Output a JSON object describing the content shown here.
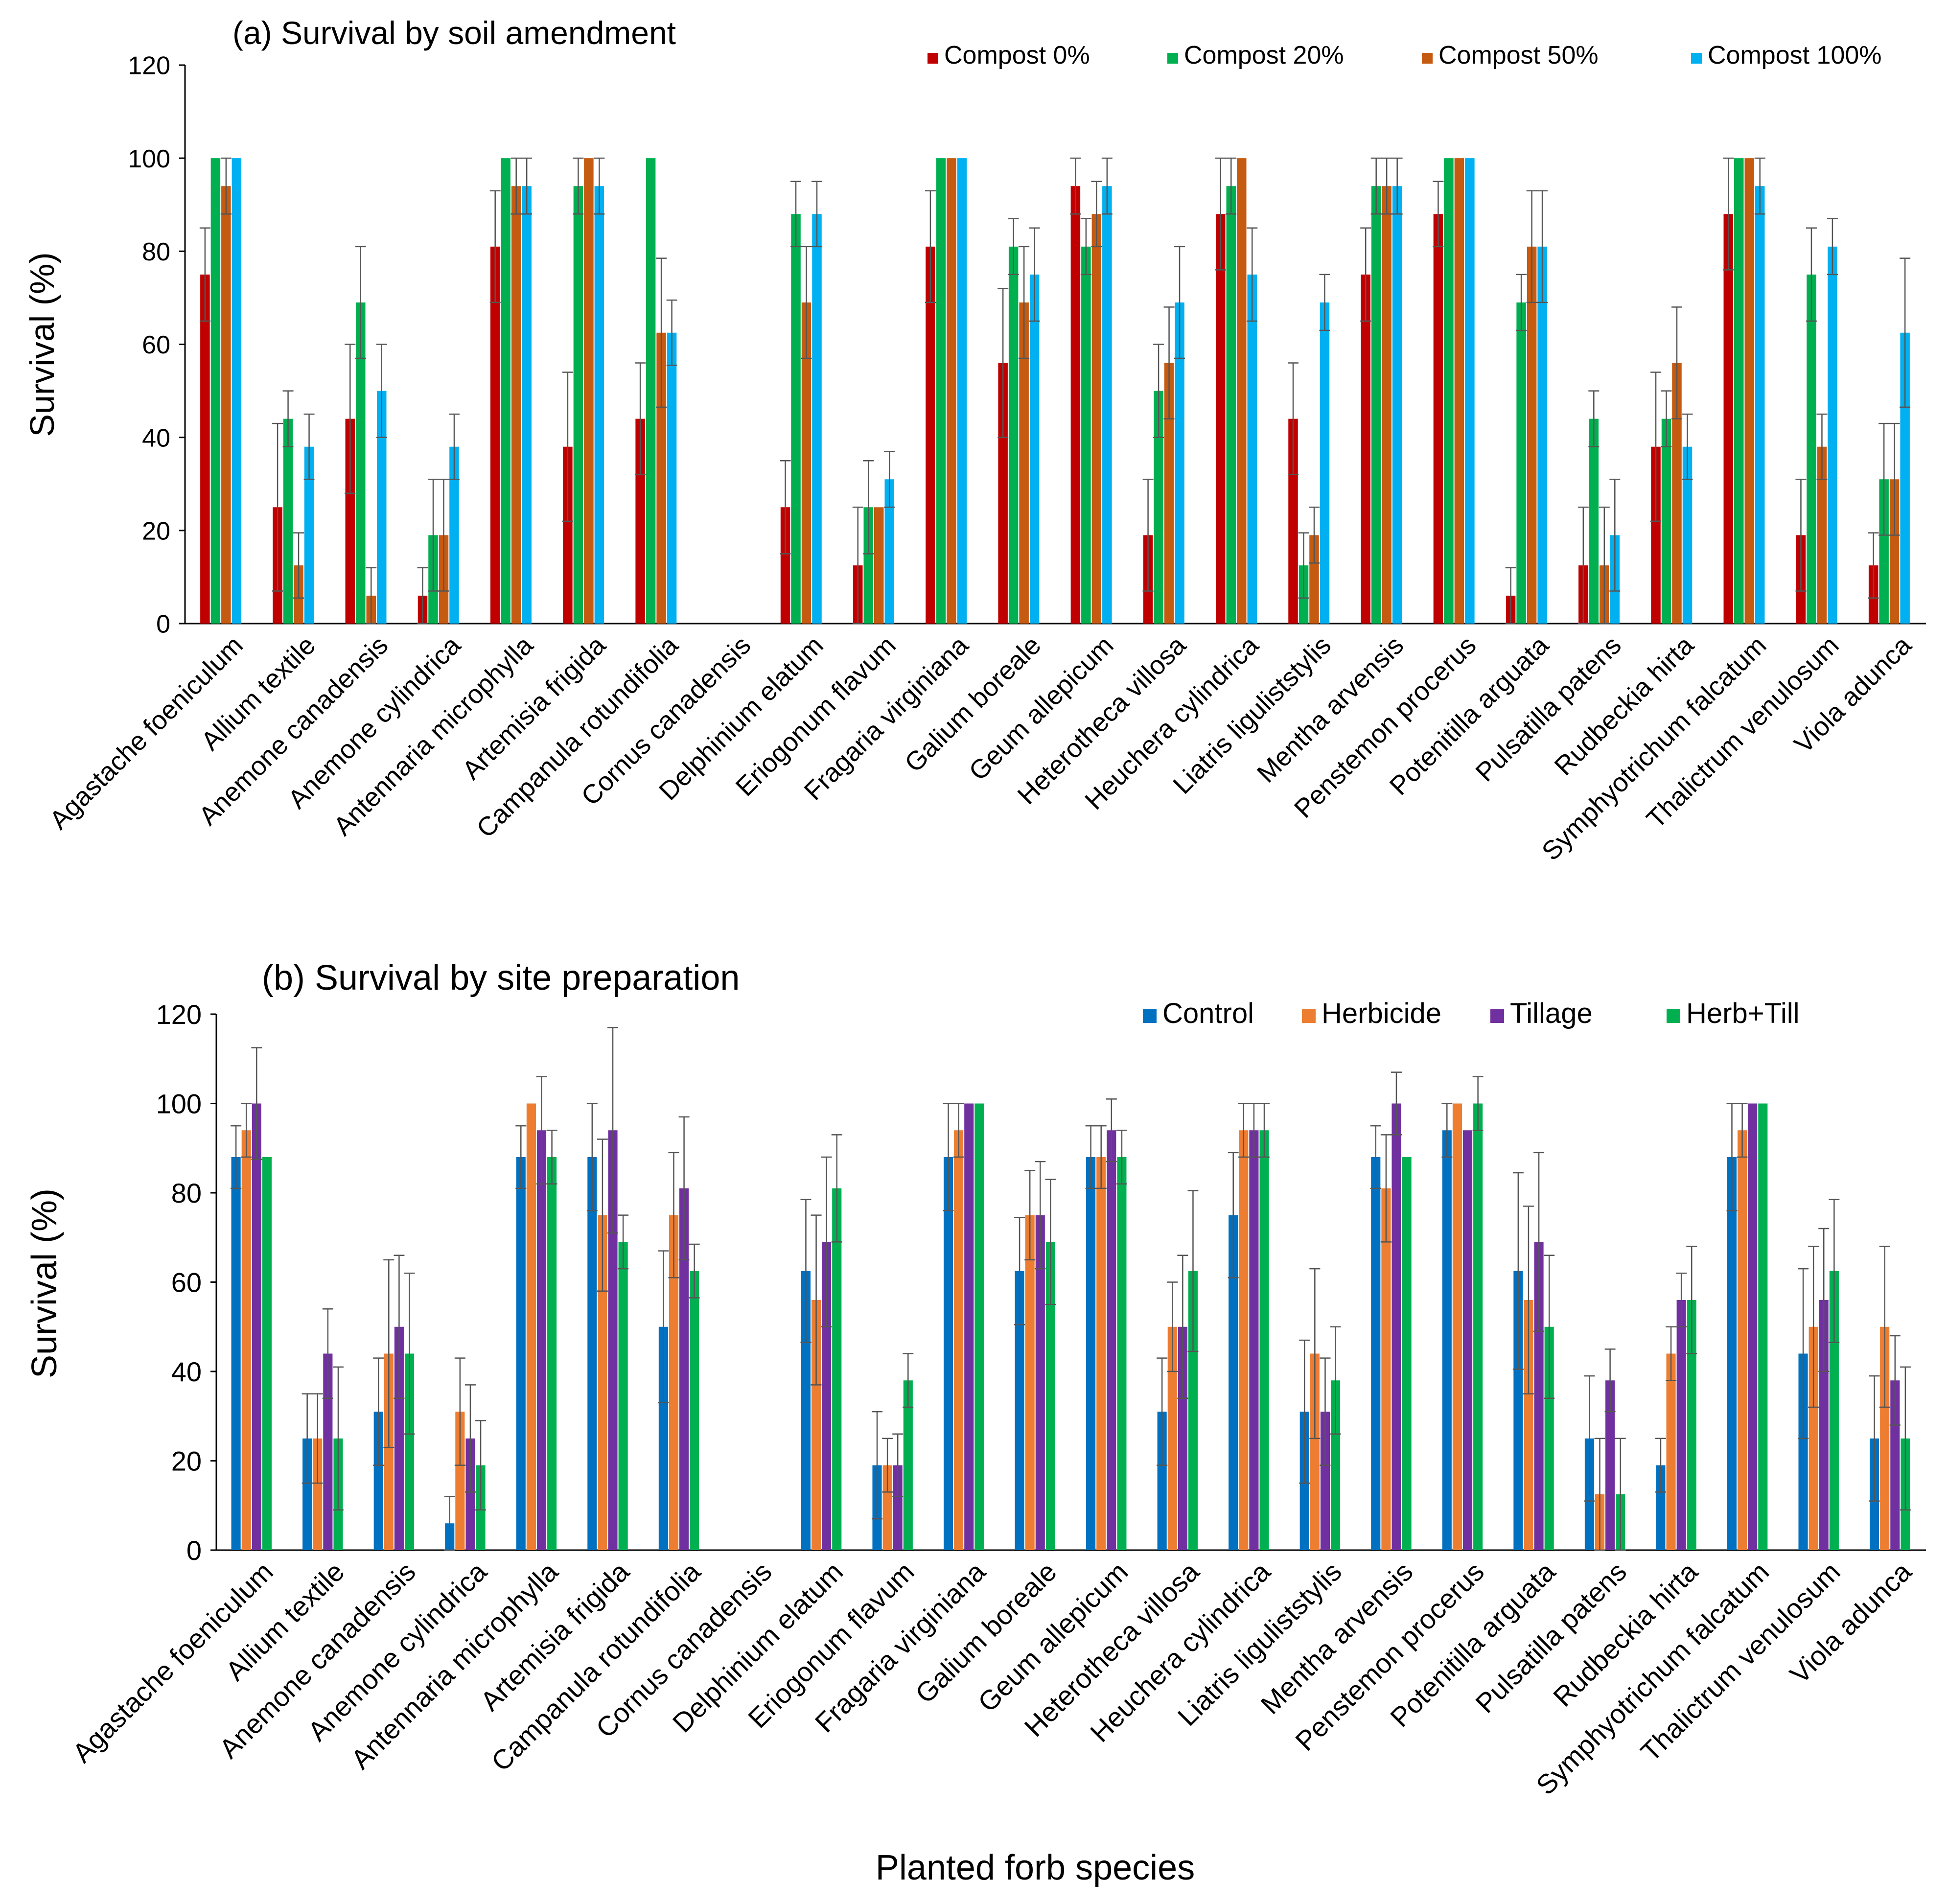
{
  "figure": {
    "common_xlabel": "Planted forb species"
  },
  "chart_data": [
    {
      "type": "bar",
      "title": "(a) Survival by soil amendment",
      "xlabel": "",
      "ylabel": "Survival (%)",
      "ylim": [
        0,
        120
      ],
      "yticks": [
        0,
        20,
        40,
        60,
        80,
        100,
        120
      ],
      "legend_position": "top-right",
      "categories": [
        "Agastache foeniculum",
        "Allium textile",
        "Anemone canadensis",
        "Anemone cylindrica",
        "Antennaria microphylla",
        "Artemisia frigida",
        "Campanula rotundifolia",
        "Cornus canadensis",
        "Delphinium elatum",
        "Eriogonum flavum",
        "Fragaria virginiana",
        "Galium boreale",
        "Geum allepicum",
        "Heterotheca villosa",
        "Heuchera cylindrica",
        "Liatris liguliststylis",
        "Mentha arvensis",
        "Penstemon procerus",
        "Potenitilla arguata",
        "Pulsatilla patens",
        "Rudbeckia hirta",
        "Symphyotrichum falcatum",
        "Thalictrum venulosum",
        "Viola adunca"
      ],
      "series": [
        {
          "name": "Compost 0%",
          "color": "#C00000",
          "values": [
            75,
            25,
            44,
            6,
            81,
            38,
            44,
            0,
            25,
            12.5,
            81,
            56,
            94,
            19,
            88,
            44,
            75,
            88,
            6,
            12.5,
            38,
            88,
            19,
            12.5
          ],
          "errors": [
            10,
            18,
            16,
            6,
            12,
            16,
            12,
            0,
            10,
            12.5,
            12,
            16,
            6,
            12,
            12,
            12,
            10,
            7,
            6,
            12.5,
            16,
            12,
            12,
            7
          ]
        },
        {
          "name": "Compost 20%",
          "color": "#00B050",
          "values": [
            100,
            44,
            69,
            19,
            100,
            94,
            100,
            0,
            88,
            25,
            100,
            81,
            81,
            50,
            94,
            12.5,
            94,
            100,
            69,
            44,
            44,
            100,
            75,
            31
          ],
          "errors": [
            0,
            6,
            12,
            12,
            0,
            6,
            0,
            0,
            7,
            10,
            0,
            6,
            6,
            10,
            6,
            7,
            6,
            0,
            6,
            6,
            6,
            0,
            10,
            12
          ]
        },
        {
          "name": "Compost 50%",
          "color": "#C55A11",
          "values": [
            94,
            12.5,
            6,
            19,
            94,
            100,
            62.5,
            0,
            69,
            25,
            100,
            69,
            88,
            56,
            100,
            19,
            94,
            100,
            81,
            12.5,
            56,
            100,
            38,
            31
          ],
          "errors": [
            6,
            7,
            6,
            12,
            6,
            0,
            16,
            0,
            12,
            0,
            0,
            12,
            7,
            12,
            0,
            6,
            6,
            0,
            12,
            12.5,
            12,
            0,
            7,
            12
          ]
        },
        {
          "name": "Compost 100%",
          "color": "#00B0F0",
          "values": [
            100,
            38,
            50,
            38,
            94,
            94,
            62.5,
            0,
            88,
            31,
            100,
            75,
            94,
            69,
            75,
            69,
            94,
            100,
            81,
            19,
            38,
            94,
            81,
            62.5
          ],
          "errors": [
            0,
            7,
            10,
            7,
            6,
            6,
            7,
            0,
            7,
            6,
            0,
            10,
            6,
            12,
            10,
            6,
            6,
            0,
            12,
            12,
            7,
            6,
            6,
            16
          ]
        }
      ]
    },
    {
      "type": "bar",
      "title": "(b) Survival by site preparation",
      "xlabel": "Planted forb species",
      "ylabel": "Survival (%)",
      "ylim": [
        0,
        120
      ],
      "yticks": [
        0,
        20,
        40,
        60,
        80,
        100,
        120
      ],
      "legend_position": "top-right",
      "categories": [
        "Agastache foeniculum",
        "Allium textile",
        "Anemone canadensis",
        "Anemone cylindrica",
        "Antennaria microphylla",
        "Artemisia frigida",
        "Campanula rotundifolia",
        "Cornus canadensis",
        "Delphinium elatum",
        "Eriogonum flavum",
        "Fragaria virginiana",
        "Galium boreale",
        "Geum allepicum",
        "Heterotheca villosa",
        "Heuchera cylindrica",
        "Liatris liguliststylis",
        "Mentha arvensis",
        "Penstemon procerus",
        "Potenitilla arguata",
        "Pulsatilla patens",
        "Rudbeckia hirta",
        "Symphyotrichum falcatum",
        "Thalictrum venulosum",
        "Viola adunca"
      ],
      "series": [
        {
          "name": "Control",
          "color": "#0070C0",
          "values": [
            88,
            25,
            31,
            6,
            88,
            88,
            50,
            0,
            62.5,
            19,
            88,
            62.5,
            88,
            31,
            75,
            31,
            88,
            94,
            62.5,
            25,
            19,
            88,
            44,
            25
          ],
          "errors": [
            7,
            10,
            12,
            6,
            7,
            12,
            17,
            0,
            16,
            12,
            12,
            12,
            7,
            12,
            14,
            16,
            7,
            6,
            22,
            14,
            6,
            12,
            19,
            14
          ]
        },
        {
          "name": "Herbicide",
          "color": "#ED7D31",
          "values": [
            94,
            25,
            44,
            31,
            100,
            75,
            75,
            0,
            56,
            19,
            94,
            75,
            88,
            50,
            94,
            44,
            81,
            100,
            56,
            12.5,
            44,
            94,
            50,
            50
          ],
          "errors": [
            6,
            10,
            21,
            12,
            0,
            17,
            14,
            0,
            19,
            6,
            6,
            10,
            7,
            10,
            6,
            19,
            12,
            0,
            21,
            12.5,
            6,
            6,
            18,
            18
          ]
        },
        {
          "name": "Tillage",
          "color": "#7030A0",
          "values": [
            100,
            44,
            50,
            25,
            94,
            94,
            81,
            0,
            69,
            19,
            100,
            75,
            94,
            50,
            94,
            31,
            100,
            94,
            69,
            38,
            56,
            100,
            56,
            38
          ],
          "errors": [
            12.5,
            10,
            16,
            12,
            12,
            23,
            16,
            0,
            19,
            7,
            0,
            12,
            7,
            16,
            6,
            12,
            7,
            0,
            20,
            7,
            6,
            0,
            16,
            10
          ]
        },
        {
          "name": "Herb+Till",
          "color": "#00B050",
          "values": [
            88,
            25,
            44,
            19,
            88,
            69,
            62.5,
            0,
            81,
            38,
            100,
            69,
            88,
            62.5,
            94,
            38,
            88,
            100,
            50,
            12.5,
            56,
            100,
            62.5,
            25
          ],
          "errors": [
            0,
            16,
            18,
            10,
            6,
            6,
            6,
            0,
            12,
            6,
            0,
            14,
            6,
            18,
            6,
            12,
            0,
            6,
            16,
            12.5,
            12,
            0,
            16,
            16
          ]
        }
      ]
    }
  ]
}
